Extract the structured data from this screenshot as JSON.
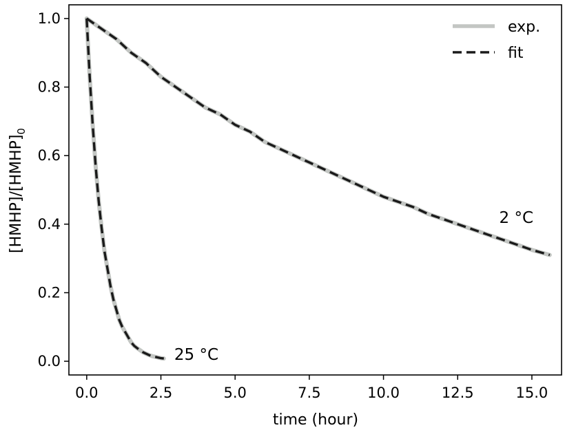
{
  "chart_data": {
    "type": "line",
    "xlabel": "time (hour)",
    "ylabel_main": "[HMHP]/[HMHP]",
    "ylabel_sub": "0",
    "xlim": [
      -0.6,
      16.0
    ],
    "ylim": [
      -0.04,
      1.04
    ],
    "x_ticks": [
      0.0,
      2.5,
      5.0,
      7.5,
      10.0,
      12.5,
      15.0
    ],
    "x_tick_labels": [
      "0.0",
      "2.5",
      "5.0",
      "7.5",
      "10.0",
      "12.5",
      "15.0"
    ],
    "y_ticks": [
      0.0,
      0.2,
      0.4,
      0.6,
      0.8,
      1.0
    ],
    "y_tick_labels": [
      "0.0",
      "0.2",
      "0.4",
      "0.6",
      "0.8",
      "1.0"
    ],
    "grid": false,
    "legend": {
      "placement": "top-right",
      "entries": [
        {
          "label": "exp.",
          "color": "#c3c6c3",
          "style": "solid"
        },
        {
          "label": "fit",
          "color": "#1a1a1a",
          "style": "dashed"
        }
      ]
    },
    "annotations": [
      {
        "text": "25 °C",
        "x": 2.95,
        "y": 0.02
      },
      {
        "text": "2 °C",
        "x": 13.9,
        "y": 0.42
      }
    ],
    "series": [
      {
        "name": "exp.",
        "curve": "25 °C",
        "color": "#c3c6c3",
        "style": "solid",
        "x": [
          0.0,
          0.1,
          0.2,
          0.3,
          0.4,
          0.5,
          0.6,
          0.7,
          0.8,
          0.9,
          1.0,
          1.1,
          1.2,
          1.3,
          1.4,
          1.5,
          1.6,
          1.7,
          1.8,
          1.9,
          2.0,
          2.1,
          2.2,
          2.3,
          2.4,
          2.5,
          2.6
        ],
        "y": [
          1.0,
          0.83,
          0.69,
          0.57,
          0.47,
          0.39,
          0.32,
          0.27,
          0.22,
          0.18,
          0.15,
          0.12,
          0.1,
          0.085,
          0.07,
          0.055,
          0.045,
          0.038,
          0.032,
          0.026,
          0.022,
          0.018,
          0.015,
          0.013,
          0.011,
          0.009,
          0.008
        ]
      },
      {
        "name": "fit",
        "curve": "25 °C",
        "color": "#1a1a1a",
        "style": "dashed",
        "x": [
          0.0,
          0.1,
          0.2,
          0.3,
          0.4,
          0.5,
          0.6,
          0.7,
          0.8,
          0.9,
          1.0,
          1.1,
          1.2,
          1.3,
          1.4,
          1.5,
          1.6,
          1.7,
          1.8,
          1.9,
          2.0,
          2.1,
          2.2,
          2.3,
          2.4,
          2.5,
          2.6
        ],
        "y": [
          1.0,
          0.83,
          0.69,
          0.57,
          0.47,
          0.39,
          0.32,
          0.27,
          0.22,
          0.18,
          0.15,
          0.12,
          0.1,
          0.085,
          0.07,
          0.055,
          0.045,
          0.038,
          0.032,
          0.026,
          0.022,
          0.018,
          0.015,
          0.013,
          0.011,
          0.009,
          0.008
        ]
      },
      {
        "name": "exp.",
        "curve": "2 °C",
        "color": "#c3c6c3",
        "style": "solid",
        "x": [
          0.0,
          0.5,
          1.0,
          1.5,
          2.0,
          2.5,
          3.0,
          3.5,
          4.0,
          4.5,
          5.0,
          5.5,
          6.0,
          6.5,
          7.0,
          7.5,
          8.0,
          8.5,
          9.0,
          9.5,
          10.0,
          10.5,
          11.0,
          11.5,
          12.0,
          12.5,
          13.0,
          13.5,
          14.0,
          14.5,
          15.0,
          15.6
        ],
        "y": [
          1.0,
          0.97,
          0.94,
          0.9,
          0.87,
          0.83,
          0.8,
          0.77,
          0.74,
          0.72,
          0.69,
          0.67,
          0.64,
          0.62,
          0.6,
          0.58,
          0.56,
          0.54,
          0.52,
          0.5,
          0.48,
          0.465,
          0.45,
          0.43,
          0.415,
          0.4,
          0.385,
          0.37,
          0.355,
          0.34,
          0.325,
          0.31
        ]
      },
      {
        "name": "fit",
        "curve": "2 °C",
        "color": "#1a1a1a",
        "style": "dashed",
        "x": [
          0.0,
          0.5,
          1.0,
          1.5,
          2.0,
          2.5,
          3.0,
          3.5,
          4.0,
          4.5,
          5.0,
          5.5,
          6.0,
          6.5,
          7.0,
          7.5,
          8.0,
          8.5,
          9.0,
          9.5,
          10.0,
          10.5,
          11.0,
          11.5,
          12.0,
          12.5,
          13.0,
          13.5,
          14.0,
          14.5,
          15.0,
          15.6
        ],
        "y": [
          1.0,
          0.97,
          0.94,
          0.9,
          0.87,
          0.83,
          0.8,
          0.77,
          0.74,
          0.72,
          0.69,
          0.67,
          0.64,
          0.62,
          0.6,
          0.58,
          0.56,
          0.54,
          0.52,
          0.5,
          0.48,
          0.465,
          0.45,
          0.43,
          0.415,
          0.4,
          0.385,
          0.37,
          0.355,
          0.34,
          0.325,
          0.31
        ]
      }
    ]
  }
}
